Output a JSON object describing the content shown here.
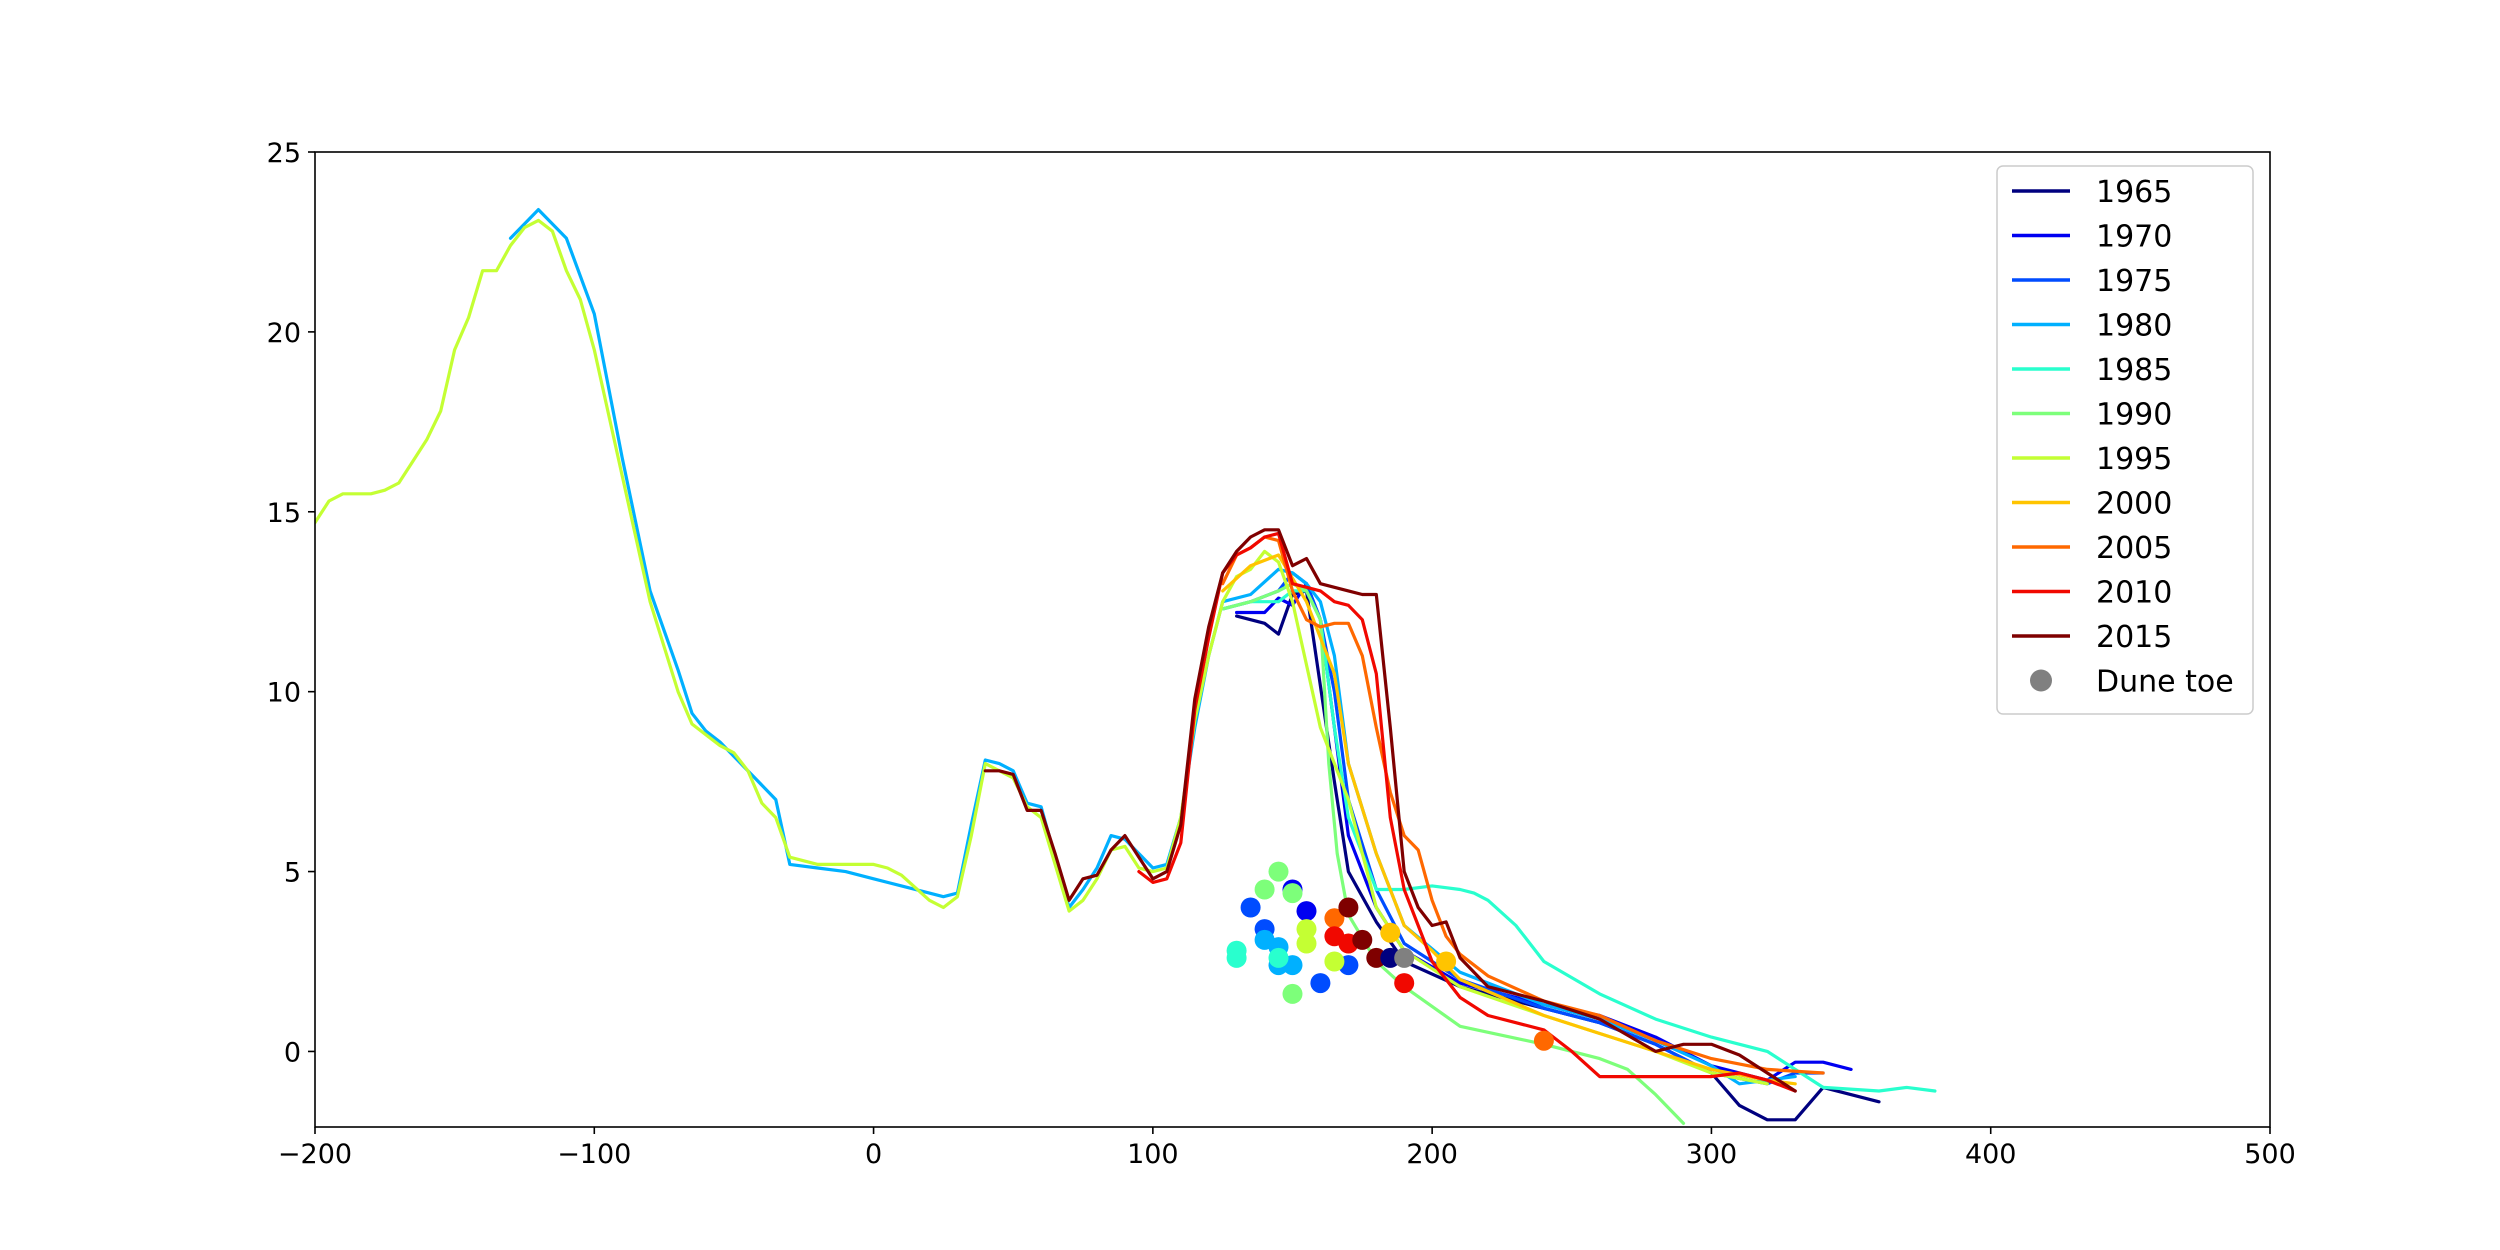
{
  "chart_data": {
    "type": "line",
    "title": "",
    "xlabel": "",
    "ylabel": "",
    "xlim": [
      -200,
      500
    ],
    "ylim": [
      -2.1,
      25
    ],
    "xticks": [
      -200,
      -100,
      0,
      100,
      200,
      300,
      400,
      500
    ],
    "yticks": [
      0,
      5,
      10,
      15,
      20,
      25
    ],
    "xtick_labels": [
      "−200",
      "−100",
      "0",
      "100",
      "200",
      "300",
      "400",
      "500"
    ],
    "ytick_labels": [
      "0",
      "5",
      "10",
      "15",
      "20",
      "25"
    ],
    "grid": false,
    "legend_position": "top-right",
    "series": [
      {
        "name": "1965",
        "color": "#00007f",
        "x": [
          130,
          140,
          145,
          150,
          155,
          165,
          170,
          180,
          190,
          210,
          240,
          260,
          280,
          290,
          300,
          310,
          320,
          330,
          340,
          360
        ],
        "y": [
          12.1,
          11.9,
          11.6,
          12.7,
          12.8,
          7.5,
          5.0,
          3.6,
          2.5,
          1.8,
          1.2,
          0.8,
          0.2,
          -0.2,
          -0.6,
          -1.5,
          -1.9,
          -1.9,
          -1.0,
          -1.4
        ]
      },
      {
        "name": "1970",
        "color": "#0000f1",
        "x": [
          130,
          140,
          145,
          150,
          155,
          160,
          165,
          170,
          180,
          190,
          210,
          240,
          260,
          280,
          300,
          320,
          330,
          340,
          350
        ],
        "y": [
          12.2,
          12.2,
          12.6,
          12.4,
          13.0,
          12.0,
          9.0,
          6.0,
          4.0,
          2.8,
          1.9,
          1.3,
          1.0,
          0.4,
          -0.4,
          -0.8,
          -0.3,
          -0.3,
          -0.5
        ]
      },
      {
        "name": "1975",
        "color": "#004cff",
        "x": [
          125,
          135,
          145,
          150,
          155,
          160,
          165,
          170,
          180,
          190,
          210,
          240,
          260,
          280,
          300,
          320,
          330,
          340
        ],
        "y": [
          12.3,
          12.5,
          12.8,
          13.3,
          13.0,
          12.0,
          10.0,
          7.0,
          4.5,
          3.0,
          2.0,
          1.2,
          0.8,
          0.2,
          -0.6,
          -0.9,
          -0.6,
          -0.6
        ]
      },
      {
        "name": "1980",
        "color": "#00b0ff",
        "x": [
          -130,
          -120,
          -110,
          -100,
          -90,
          -80,
          -70,
          -65,
          -60,
          -55,
          -50,
          -40,
          -35,
          -30,
          -20,
          -10,
          0,
          10,
          20,
          25,
          30,
          35,
          40,
          45,
          50,
          55,
          60,
          70,
          75,
          80,
          85,
          90,
          95,
          100,
          105,
          110,
          115,
          120,
          125,
          135,
          145,
          150,
          155,
          160,
          165,
          170,
          180,
          190,
          210,
          240,
          260,
          280,
          300,
          310,
          320,
          330
        ],
        "y": [
          22.6,
          23.4,
          22.6,
          20.5,
          16.5,
          12.8,
          10.6,
          9.4,
          8.9,
          8.6,
          8.2,
          7.4,
          7.0,
          5.2,
          5.1,
          5.0,
          4.8,
          4.6,
          4.4,
          4.3,
          4.4,
          6.3,
          8.1,
          8.0,
          7.8,
          6.9,
          6.8,
          4.0,
          4.5,
          5.1,
          6.0,
          5.9,
          5.5,
          5.1,
          5.2,
          6.5,
          9.0,
          11.0,
          12.5,
          12.7,
          13.4,
          13.3,
          13.0,
          12.5,
          11.0,
          8.0,
          5.5,
          3.5,
          2.2,
          1.3,
          0.9,
          0.3,
          -0.4,
          -0.9,
          -0.8,
          -0.7
        ]
      },
      {
        "name": "1985",
        "color": "#29ffce",
        "x": [
          125,
          135,
          145,
          150,
          155,
          160,
          165,
          170,
          180,
          190,
          200,
          210,
          215,
          220,
          230,
          240,
          260,
          280,
          300,
          320,
          340,
          360,
          370,
          380
        ],
        "y": [
          12.3,
          12.5,
          12.5,
          12.8,
          12.8,
          12.0,
          9.0,
          6.5,
          4.5,
          4.5,
          4.6,
          4.5,
          4.4,
          4.2,
          3.5,
          2.5,
          1.6,
          0.9,
          0.4,
          0.0,
          -1.0,
          -1.1,
          -1.0,
          -1.1
        ]
      },
      {
        "name": "1990",
        "color": "#7dff7a",
        "x": [
          125,
          135,
          145,
          150,
          155,
          160,
          163,
          166,
          170,
          180,
          190,
          210,
          240,
          260,
          270,
          280,
          290
        ],
        "y": [
          12.3,
          12.5,
          12.8,
          13.0,
          12.8,
          12.0,
          8.0,
          5.5,
          3.8,
          2.5,
          1.8,
          0.7,
          0.2,
          -0.2,
          -0.5,
          -1.2,
          -2.0
        ]
      },
      {
        "name": "1995",
        "color": "#c4ff33",
        "x": [
          -200,
          -195,
          -190,
          -180,
          -175,
          -170,
          -165,
          -160,
          -155,
          -150,
          -145,
          -140,
          -135,
          -130,
          -125,
          -120,
          -115,
          -110,
          -105,
          -100,
          -90,
          -80,
          -70,
          -65,
          -60,
          -55,
          -50,
          -45,
          -40,
          -35,
          -30,
          -20,
          -10,
          0,
          5,
          10,
          20,
          25,
          30,
          35,
          40,
          45,
          50,
          55,
          60,
          70,
          75,
          80,
          85,
          90,
          95,
          100,
          105,
          110,
          115,
          120,
          125,
          130,
          135,
          140,
          145,
          150,
          160,
          165,
          170,
          180,
          190,
          210,
          240,
          260,
          280,
          300,
          320
        ],
        "y": [
          14.7,
          15.3,
          15.5,
          15.5,
          15.6,
          15.8,
          16.4,
          17.0,
          17.8,
          19.5,
          20.4,
          21.7,
          21.7,
          22.4,
          22.9,
          23.1,
          22.8,
          21.7,
          20.9,
          19.5,
          16.0,
          12.5,
          10.0,
          9.1,
          8.8,
          8.5,
          8.3,
          7.8,
          6.9,
          6.5,
          5.4,
          5.2,
          5.2,
          5.2,
          5.1,
          4.9,
          4.2,
          4.0,
          4.3,
          6.0,
          8.0,
          7.8,
          7.6,
          6.8,
          6.5,
          3.9,
          4.2,
          4.8,
          5.6,
          5.7,
          5.1,
          5.0,
          5.1,
          6.5,
          9.2,
          11.0,
          12.5,
          13.2,
          13.4,
          13.9,
          13.6,
          12.5,
          9.0,
          8.0,
          7.0,
          4.0,
          2.8,
          1.8,
          1.0,
          0.5,
          0.0,
          -0.6,
          -0.9
        ]
      },
      {
        "name": "2000",
        "color": "#ffc400",
        "x": [
          125,
          135,
          145,
          155,
          160,
          165,
          170,
          180,
          190,
          200,
          210,
          240,
          260,
          280,
          300,
          320,
          330
        ],
        "y": [
          12.8,
          13.5,
          13.8,
          12.5,
          11.5,
          10.5,
          8.0,
          5.5,
          3.5,
          2.8,
          2.0,
          1.0,
          0.5,
          0.0,
          -0.5,
          -0.8,
          -0.9
        ]
      },
      {
        "name": "2005",
        "color": "#ff6800",
        "x": [
          125,
          130,
          135,
          140,
          145,
          150,
          155,
          160,
          165,
          170,
          175,
          180,
          185,
          190,
          195,
          200,
          205,
          210,
          220,
          240,
          260,
          280,
          300,
          320,
          340
        ],
        "y": [
          13.0,
          13.8,
          14.0,
          14.3,
          14.2,
          12.8,
          12.0,
          11.8,
          11.9,
          11.9,
          11.0,
          9.0,
          7.2,
          6.0,
          5.6,
          4.2,
          3.2,
          2.7,
          2.1,
          1.4,
          1.0,
          0.3,
          -0.2,
          -0.5,
          -0.6
        ]
      },
      {
        "name": "2010",
        "color": "#f10800",
        "x": [
          95,
          100,
          105,
          110,
          115,
          120,
          125,
          130,
          135,
          140,
          145,
          150,
          155,
          160,
          165,
          170,
          175,
          180,
          185,
          190,
          195,
          200,
          210,
          220,
          230,
          240,
          250,
          260,
          270,
          280,
          290,
          300,
          310,
          320,
          330
        ],
        "y": [
          5.0,
          4.7,
          4.8,
          5.8,
          9.5,
          11.5,
          13.3,
          13.8,
          14.0,
          14.3,
          14.4,
          13.0,
          12.9,
          12.8,
          12.5,
          12.4,
          12.0,
          10.5,
          6.5,
          4.5,
          3.5,
          2.5,
          1.5,
          1.0,
          0.8,
          0.6,
          0.0,
          -0.7,
          -0.7,
          -0.7,
          -0.7,
          -0.7,
          -0.6,
          -0.8,
          -1.1
        ]
      },
      {
        "name": "2015",
        "color": "#7f0000",
        "x": [
          40,
          45,
          50,
          55,
          60,
          65,
          70,
          75,
          80,
          85,
          90,
          95,
          100,
          105,
          110,
          115,
          120,
          125,
          130,
          135,
          140,
          145,
          150,
          155,
          160,
          165,
          170,
          175,
          180,
          185,
          190,
          195,
          200,
          205,
          210,
          220,
          240,
          260,
          280,
          290,
          300,
          310,
          320,
          330
        ],
        "y": [
          7.8,
          7.8,
          7.7,
          6.7,
          6.7,
          5.5,
          4.2,
          4.8,
          4.9,
          5.6,
          6.0,
          5.4,
          4.8,
          5.0,
          6.3,
          9.8,
          11.8,
          13.3,
          13.9,
          14.3,
          14.5,
          14.5,
          13.5,
          13.7,
          13.0,
          12.9,
          12.8,
          12.7,
          12.7,
          9.0,
          5.0,
          4.0,
          3.5,
          3.6,
          2.6,
          1.8,
          1.4,
          0.9,
          0.0,
          0.2,
          0.2,
          -0.1,
          -0.6,
          -1.1
        ]
      }
    ],
    "dune_toe": {
      "name": "Dune toe",
      "color": "#808080",
      "points": [
        {
          "x": 150,
          "y": 4.5,
          "color": "#0000f1"
        },
        {
          "x": 155,
          "y": 3.9,
          "color": "#0000f1"
        },
        {
          "x": 170,
          "y": 2.4,
          "color": "#004cff"
        },
        {
          "x": 160,
          "y": 1.9,
          "color": "#004cff"
        },
        {
          "x": 145,
          "y": 2.4,
          "color": "#00b0ff"
        },
        {
          "x": 135,
          "y": 4.0,
          "color": "#004cff"
        },
        {
          "x": 140,
          "y": 3.4,
          "color": "#004cff"
        },
        {
          "x": 140,
          "y": 3.1,
          "color": "#00b0ff"
        },
        {
          "x": 150,
          "y": 2.4,
          "color": "#00b0ff"
        },
        {
          "x": 145,
          "y": 2.9,
          "color": "#00b0ff"
        },
        {
          "x": 130,
          "y": 2.8,
          "color": "#29ffce"
        },
        {
          "x": 130,
          "y": 2.6,
          "color": "#29ffce"
        },
        {
          "x": 145,
          "y": 2.6,
          "color": "#29ffce"
        },
        {
          "x": 140,
          "y": 4.5,
          "color": "#7dff7a"
        },
        {
          "x": 145,
          "y": 5.0,
          "color": "#7dff7a"
        },
        {
          "x": 150,
          "y": 4.4,
          "color": "#7dff7a"
        },
        {
          "x": 150,
          "y": 1.6,
          "color": "#7dff7a"
        },
        {
          "x": 155,
          "y": 3.4,
          "color": "#c4ff33"
        },
        {
          "x": 155,
          "y": 3.0,
          "color": "#c4ff33"
        },
        {
          "x": 165,
          "y": 2.5,
          "color": "#c4ff33"
        },
        {
          "x": 185,
          "y": 3.3,
          "color": "#ffc400"
        },
        {
          "x": 205,
          "y": 2.5,
          "color": "#ffc400"
        },
        {
          "x": 165,
          "y": 3.7,
          "color": "#ff6800"
        },
        {
          "x": 240,
          "y": 0.3,
          "color": "#ff6800"
        },
        {
          "x": 165,
          "y": 3.2,
          "color": "#f10800"
        },
        {
          "x": 170,
          "y": 3.0,
          "color": "#f10800"
        },
        {
          "x": 190,
          "y": 1.9,
          "color": "#f10800"
        },
        {
          "x": 170,
          "y": 4.0,
          "color": "#7f0000"
        },
        {
          "x": 175,
          "y": 3.1,
          "color": "#7f0000"
        },
        {
          "x": 180,
          "y": 2.6,
          "color": "#7f0000"
        },
        {
          "x": 185,
          "y": 2.6,
          "color": "#00007f"
        },
        {
          "x": 190,
          "y": 2.6,
          "color": "#808080"
        }
      ]
    }
  }
}
